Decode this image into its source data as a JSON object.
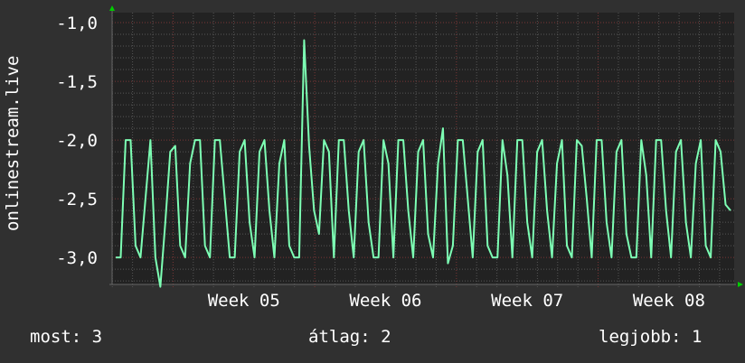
{
  "chart_data": {
    "type": "line",
    "ylabel": "onlinestream.live",
    "ylim": [
      -3.23,
      -0.915
    ],
    "xlim_weeks": [
      4.57,
      8.96
    ],
    "y_ticks": [
      {
        "value": -1.0,
        "label": "-1,0"
      },
      {
        "value": -1.5,
        "label": "-1,5"
      },
      {
        "value": -2.0,
        "label": "-2,0"
      },
      {
        "value": -2.5,
        "label": "-2,5"
      },
      {
        "value": -3.0,
        "label": "-3,0"
      }
    ],
    "x_ticks": [
      {
        "value": 5.5,
        "label": "Week 05"
      },
      {
        "value": 6.5,
        "label": "Week 06"
      },
      {
        "value": 7.5,
        "label": "Week 07"
      },
      {
        "value": 8.5,
        "label": "Week 08"
      }
    ],
    "grid": true,
    "colors": {
      "background": "#303030",
      "plot": "#222222",
      "line": "#7dffb4",
      "minor_grid": "#555555",
      "major_grid": "#7a3636",
      "arrow": "#00cc00"
    },
    "series": [
      {
        "values": [
          -3,
          -3,
          -2,
          -2,
          -2.9,
          -3,
          -2.5,
          -2,
          -3,
          -3.25,
          -2.7,
          -2.1,
          -2.05,
          -2.9,
          -3,
          -2.2,
          -2,
          -2,
          -2.9,
          -3,
          -2,
          -2,
          -2.5,
          -3,
          -3,
          -2.1,
          -2,
          -2.7,
          -3,
          -2.1,
          -2,
          -2.6,
          -3,
          -2.2,
          -2,
          -2.9,
          -3,
          -3,
          -1.15,
          -2.05,
          -2.6,
          -2.8,
          -2.0,
          -2.1,
          -3,
          -2,
          -2,
          -2.6,
          -3,
          -2.1,
          -2,
          -2.7,
          -3,
          -3,
          -2,
          -2.2,
          -3,
          -2,
          -2,
          -2.6,
          -3,
          -2.1,
          -2,
          -2.8,
          -3,
          -2.2,
          -1.9,
          -3.05,
          -2.9,
          -2,
          -2,
          -2.5,
          -3,
          -2.1,
          -2,
          -2.9,
          -3,
          -3,
          -2,
          -2.3,
          -3,
          -2,
          -2,
          -2.7,
          -3,
          -2.1,
          -2,
          -2.6,
          -3,
          -2.2,
          -2,
          -2.9,
          -3,
          -2,
          -2.05,
          -2.5,
          -3,
          -2,
          -2,
          -2.7,
          -3,
          -2.1,
          -2,
          -2.8,
          -3,
          -3,
          -2,
          -2.3,
          -3,
          -2,
          -2,
          -2.6,
          -3,
          -2.1,
          -2,
          -2.7,
          -3,
          -2.2,
          -2,
          -2.9,
          -3,
          -2,
          -2.1,
          -2.55,
          -2.6
        ]
      }
    ]
  },
  "legend": {
    "current": "most: 3",
    "average": "átlag: 2",
    "max": "legjobb: 1"
  }
}
